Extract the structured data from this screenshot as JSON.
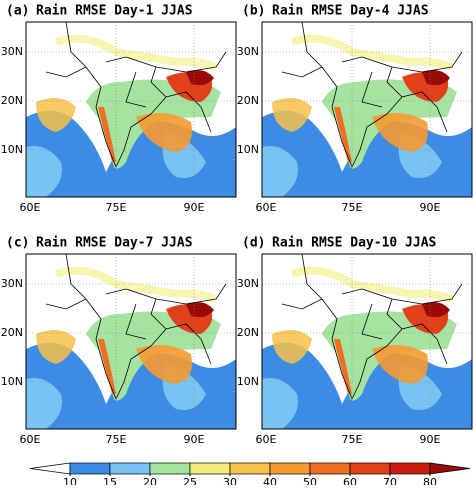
{
  "panels": [
    {
      "label": "(a)",
      "title": "Rain RMSE Day-1 JJAS"
    },
    {
      "label": "(b)",
      "title": "Rain RMSE Day-4 JJAS"
    },
    {
      "label": "(c)",
      "title": "Rain RMSE Day-7 JJAS"
    },
    {
      "label": "(d)",
      "title": "Rain RMSE Day-10 JJAS"
    }
  ],
  "lat_labels": [
    "30N",
    "20N",
    "10N"
  ],
  "lon_labels": [
    "60E",
    "75E",
    "90E"
  ],
  "colorbar": {
    "levels": [
      10,
      15,
      20,
      25,
      30,
      40,
      50,
      60,
      70,
      80
    ],
    "colors": [
      "#ffffff",
      "#3c8ce6",
      "#78c3f2",
      "#a6e3a0",
      "#f2ee7a",
      "#f7c14a",
      "#f59a32",
      "#ef6e22",
      "#e0401a",
      "#c81e10",
      "#9a0a06"
    ]
  }
}
